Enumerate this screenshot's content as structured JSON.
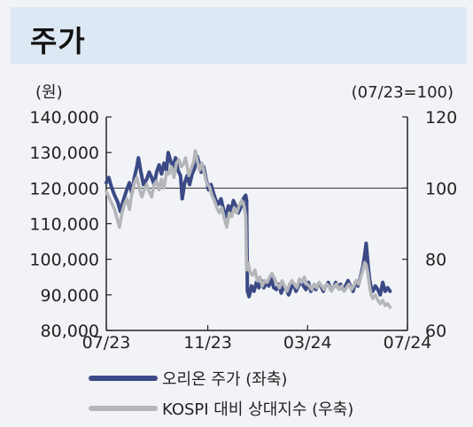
{
  "header": {
    "title": "주가"
  },
  "chart_data": {
    "type": "line",
    "left_unit": "(원)",
    "right_unit": "(07/23=100)",
    "y_left": {
      "min": 80000,
      "max": 140000,
      "ticks": [
        140000,
        130000,
        120000,
        110000,
        100000,
        90000,
        80000
      ],
      "tick_labels": [
        "140,000",
        "130,000",
        "120,000",
        "110,000",
        "100,000",
        "90,000",
        "80,000"
      ]
    },
    "y_right": {
      "min": 60,
      "max": 120,
      "ticks": [
        120,
        100,
        80,
        60
      ],
      "tick_labels": [
        "120",
        "100",
        "80",
        "60"
      ]
    },
    "x_range": [
      0,
      365
    ],
    "x_ticks": [
      0,
      123,
      244,
      366
    ],
    "x_tick_labels": [
      "07/23",
      "11/23",
      "03/24",
      "07/24"
    ],
    "reference_line": {
      "axis": "right",
      "value": 100
    },
    "series": [
      {
        "name": "오리온 주가 (좌축)",
        "axis": "left",
        "color": "#3b4a86",
        "points": [
          [
            0,
            121500
          ],
          [
            3,
            123000
          ],
          [
            6,
            120500
          ],
          [
            10,
            118000
          ],
          [
            14,
            116000
          ],
          [
            17,
            113500
          ],
          [
            20,
            116000
          ],
          [
            24,
            119000
          ],
          [
            28,
            121500
          ],
          [
            31,
            118500
          ],
          [
            34,
            123000
          ],
          [
            37,
            126000
          ],
          [
            39,
            128500
          ],
          [
            42,
            124500
          ],
          [
            45,
            121000
          ],
          [
            49,
            122500
          ],
          [
            52,
            124500
          ],
          [
            55,
            123000
          ],
          [
            58,
            121000
          ],
          [
            61,
            124500
          ],
          [
            64,
            126500
          ],
          [
            67,
            124000
          ],
          [
            70,
            127000
          ],
          [
            73,
            125000
          ],
          [
            75,
            130000
          ],
          [
            78,
            127500
          ],
          [
            81,
            126000
          ],
          [
            84,
            128500
          ],
          [
            87,
            125000
          ],
          [
            90,
            123500
          ],
          [
            92,
            117000
          ],
          [
            95,
            121500
          ],
          [
            98,
            123500
          ],
          [
            101,
            121000
          ],
          [
            104,
            124000
          ],
          [
            107,
            125500
          ],
          [
            110,
            129000
          ],
          [
            112,
            127500
          ],
          [
            115,
            124500
          ],
          [
            118,
            126000
          ],
          [
            121,
            122500
          ],
          [
            124,
            119500
          ],
          [
            127,
            121000
          ],
          [
            130,
            118500
          ],
          [
            133,
            116500
          ],
          [
            136,
            115500
          ],
          [
            139,
            117000
          ],
          [
            142,
            114000
          ],
          [
            145,
            112000
          ],
          [
            148,
            115000
          ],
          [
            151,
            113500
          ],
          [
            154,
            116500
          ],
          [
            157,
            115000
          ],
          [
            160,
            113000
          ],
          [
            163,
            114500
          ],
          [
            166,
            117000
          ],
          [
            169,
            118000
          ],
          [
            170,
            116500
          ],
          [
            171,
            91000
          ],
          [
            173,
            89500
          ],
          [
            176,
            92500
          ],
          [
            179,
            91000
          ],
          [
            182,
            93500
          ],
          [
            185,
            92000
          ],
          [
            188,
            94000
          ],
          [
            191,
            92000
          ],
          [
            194,
            93500
          ],
          [
            197,
            92500
          ],
          [
            200,
            94500
          ],
          [
            203,
            92000
          ],
          [
            206,
            91500
          ],
          [
            209,
            93000
          ],
          [
            212,
            90500
          ],
          [
            215,
            92500
          ],
          [
            218,
            91500
          ],
          [
            221,
            90000
          ],
          [
            224,
            92000
          ],
          [
            227,
            93000
          ],
          [
            230,
            91000
          ],
          [
            233,
            92500
          ],
          [
            236,
            94000
          ],
          [
            239,
            92500
          ],
          [
            242,
            91500
          ],
          [
            245,
            93500
          ],
          [
            248,
            91000
          ],
          [
            251,
            92500
          ],
          [
            254,
            91500
          ],
          [
            257,
            93000
          ],
          [
            260,
            92500
          ],
          [
            263,
            91000
          ],
          [
            266,
            92500
          ],
          [
            269,
            93500
          ],
          [
            272,
            91500
          ],
          [
            275,
            92000
          ],
          [
            278,
            93500
          ],
          [
            281,
            92000
          ],
          [
            284,
            93000
          ],
          [
            287,
            91500
          ],
          [
            290,
            92500
          ],
          [
            293,
            94000
          ],
          [
            296,
            92500
          ],
          [
            299,
            91000
          ],
          [
            302,
            93500
          ],
          [
            305,
            92500
          ],
          [
            308,
            95000
          ],
          [
            311,
            98000
          ],
          [
            313,
            101000
          ],
          [
            315,
            104500
          ],
          [
            317,
            99000
          ],
          [
            319,
            94500
          ],
          [
            321,
            92000
          ],
          [
            323,
            91000
          ],
          [
            326,
            92500
          ],
          [
            329,
            91500
          ],
          [
            332,
            90000
          ],
          [
            335,
            93500
          ],
          [
            338,
            91000
          ],
          [
            341,
            92000
          ],
          [
            344,
            91000
          ]
        ]
      },
      {
        "name": "KOSPI 대비 상대지수 (우축)",
        "axis": "right",
        "color": "#b4b6b9",
        "points": [
          [
            0,
            99.0
          ],
          [
            3,
            97.5
          ],
          [
            6,
            96.0
          ],
          [
            10,
            94.0
          ],
          [
            13,
            91.5
          ],
          [
            16,
            89.0
          ],
          [
            19,
            93.0
          ],
          [
            22,
            95.5
          ],
          [
            25,
            97.0
          ],
          [
            28,
            94.0
          ],
          [
            31,
            98.5
          ],
          [
            34,
            101.5
          ],
          [
            37,
            103.0
          ],
          [
            40,
            100.0
          ],
          [
            43,
            97.5
          ],
          [
            46,
            99.5
          ],
          [
            49,
            101.0
          ],
          [
            52,
            99.0
          ],
          [
            55,
            97.5
          ],
          [
            58,
            101.0
          ],
          [
            61,
            102.0
          ],
          [
            64,
            99.5
          ],
          [
            67,
            102.5
          ],
          [
            70,
            100.0
          ],
          [
            73,
            104.5
          ],
          [
            76,
            104.0
          ],
          [
            79,
            106.0
          ],
          [
            82,
            103.0
          ],
          [
            85,
            107.0
          ],
          [
            88,
            108.0
          ],
          [
            91,
            106.0
          ],
          [
            94,
            107.0
          ],
          [
            96,
            108.5
          ],
          [
            98,
            106.0
          ],
          [
            100,
            103.5
          ],
          [
            103,
            105.5
          ],
          [
            106,
            107.5
          ],
          [
            108,
            110.5
          ],
          [
            110,
            108.0
          ],
          [
            113,
            105.0
          ],
          [
            116,
            107.0
          ],
          [
            119,
            104.0
          ],
          [
            122,
            101.0
          ],
          [
            125,
            100.5
          ],
          [
            128,
            98.0
          ],
          [
            131,
            96.5
          ],
          [
            134,
            94.5
          ],
          [
            137,
            93.0
          ],
          [
            140,
            94.5
          ],
          [
            143,
            91.5
          ],
          [
            146,
            89.0
          ],
          [
            149,
            93.0
          ],
          [
            152,
            92.0
          ],
          [
            155,
            94.5
          ],
          [
            158,
            93.0
          ],
          [
            161,
            95.0
          ],
          [
            164,
            96.5
          ],
          [
            167,
            95.0
          ],
          [
            169,
            92.0
          ],
          [
            170,
            77.0
          ],
          [
            172,
            79.0
          ],
          [
            174,
            76.5
          ],
          [
            177,
            75.5
          ],
          [
            180,
            77.0
          ],
          [
            183,
            74.0
          ],
          [
            186,
            75.0
          ],
          [
            189,
            72.5
          ],
          [
            192,
            74.0
          ],
          [
            195,
            73.5
          ],
          [
            198,
            75.0
          ],
          [
            201,
            76.0
          ],
          [
            204,
            74.5
          ],
          [
            207,
            73.0
          ],
          [
            210,
            72.0
          ],
          [
            213,
            74.0
          ],
          [
            216,
            72.5
          ],
          [
            219,
            71.0
          ],
          [
            222,
            73.0
          ],
          [
            225,
            74.0
          ],
          [
            228,
            73.0
          ],
          [
            231,
            72.0
          ],
          [
            234,
            74.5
          ],
          [
            237,
            73.5
          ],
          [
            240,
            75.0
          ],
          [
            243,
            73.0
          ],
          [
            246,
            72.5
          ],
          [
            249,
            71.5
          ],
          [
            252,
            73.0
          ],
          [
            255,
            72.0
          ],
          [
            258,
            73.5
          ],
          [
            261,
            72.5
          ],
          [
            264,
            71.5
          ],
          [
            267,
            73.0
          ],
          [
            270,
            72.5
          ],
          [
            273,
            71.0
          ],
          [
            276,
            72.5
          ],
          [
            279,
            73.0
          ],
          [
            282,
            71.5
          ],
          [
            285,
            72.5
          ],
          [
            288,
            71.0
          ],
          [
            291,
            72.0
          ],
          [
            294,
            73.0
          ],
          [
            297,
            71.5
          ],
          [
            300,
            72.5
          ],
          [
            303,
            74.0
          ],
          [
            306,
            73.0
          ],
          [
            309,
            75.5
          ],
          [
            311,
            77.0
          ],
          [
            313,
            79.0
          ],
          [
            315,
            78.5
          ],
          [
            317,
            76.0
          ],
          [
            319,
            72.5
          ],
          [
            321,
            70.0
          ],
          [
            323,
            69.0
          ],
          [
            326,
            70.0
          ],
          [
            329,
            68.5
          ],
          [
            332,
            67.5
          ],
          [
            335,
            68.5
          ],
          [
            338,
            67.0
          ],
          [
            341,
            67.5
          ],
          [
            344,
            66.5
          ]
        ]
      }
    ],
    "legend": [
      {
        "label": "오리온 주가 (좌축)",
        "color": "#3b4a86"
      },
      {
        "label": "KOSPI 대비 상대지수 (우축)",
        "color": "#b4b6b9"
      }
    ]
  }
}
